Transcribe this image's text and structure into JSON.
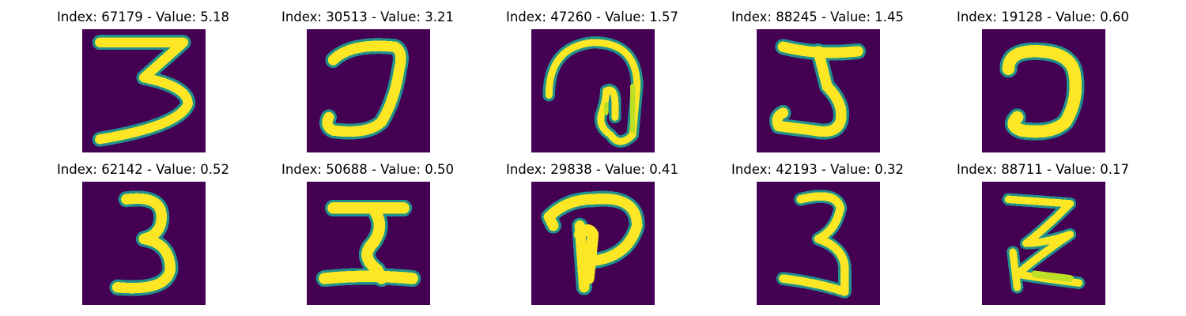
{
  "colors": {
    "background": "#440154",
    "edge": "#21918c",
    "mid": "#5ec962",
    "bright": "#bddf26",
    "peak": "#fde725"
  },
  "panels": [
    {
      "title": "Index: 67179 - Value: 5.18",
      "digit": "3"
    },
    {
      "title": "Index: 30513 - Value: 3.21",
      "digit": "J"
    },
    {
      "title": "Index: 47260 - Value: 1.57",
      "digit": "@"
    },
    {
      "title": "Index: 88245 - Value: 1.45",
      "digit": "5"
    },
    {
      "title": "Index: 19128 - Value: 0.60",
      "digit": "Ɔ"
    },
    {
      "title": "Index: 62142 - Value: 0.52",
      "digit": "3"
    },
    {
      "title": "Index: 50688 - Value: 0.50",
      "digit": "Σ"
    },
    {
      "title": "Index: 29838 - Value: 0.41",
      "digit": "P"
    },
    {
      "title": "Index: 42193 - Value: 0.32",
      "digit": "3"
    },
    {
      "title": "Index: 88711 - Value: 0.17",
      "digit": "Z"
    }
  ]
}
